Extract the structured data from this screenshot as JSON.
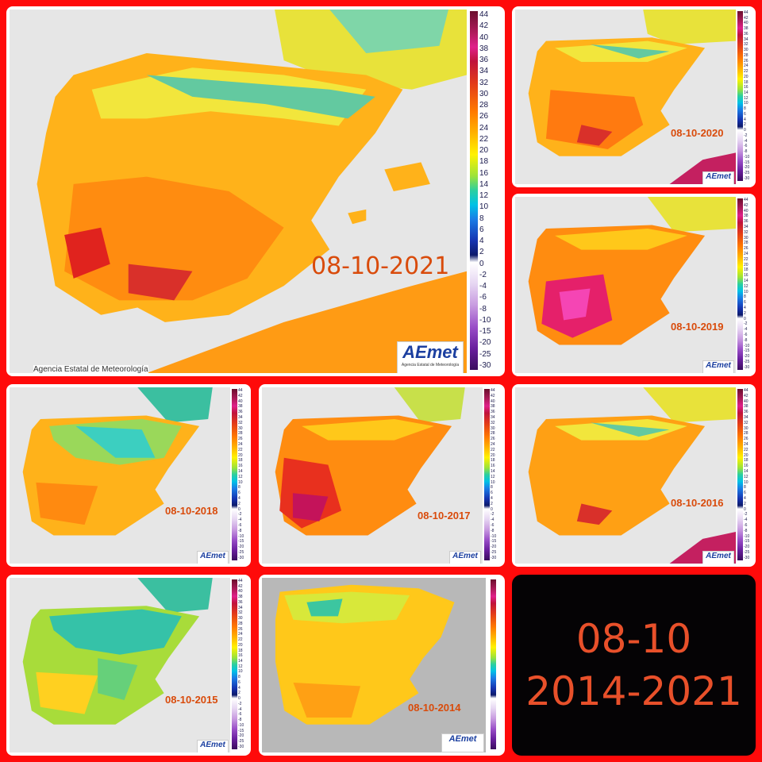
{
  "collage": {
    "summary_line1": "08-10",
    "summary_line2": "2014-2021"
  },
  "scale_labels": [
    "44",
    "42",
    "40",
    "38",
    "36",
    "34",
    "32",
    "30",
    "28",
    "26",
    "24",
    "22",
    "20",
    "18",
    "16",
    "14",
    "12",
    "10",
    "8",
    "6",
    "4",
    "2",
    "0",
    "-2",
    "-4",
    "-6",
    "-8",
    "-10",
    "-15",
    "-20",
    "-25",
    "-30"
  ],
  "credit_text": "Agencia Estatal de Meteorología",
  "logo": {
    "name": "AEmet",
    "sub": "Agencia Estatal de Meteorología"
  },
  "maps": [
    {
      "date": "08-10-2021"
    },
    {
      "date": "08-10-2020"
    },
    {
      "date": "08-10-2019"
    },
    {
      "date": "08-10-2018"
    },
    {
      "date": "08-10-2017"
    },
    {
      "date": "08-10-2016"
    },
    {
      "date": "08-10-2015"
    },
    {
      "date": "08-10-2014"
    }
  ],
  "colors": {
    "border": "#ff0a0a",
    "date_text": "#d94b0b",
    "summary_bg": "#050305",
    "summary_text": "#e8502a"
  }
}
